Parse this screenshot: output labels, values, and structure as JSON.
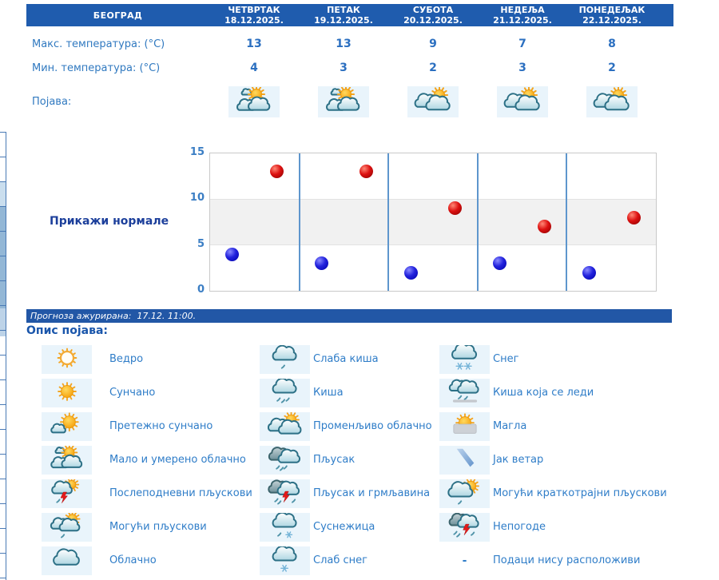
{
  "table": {
    "location": "БЕОГРАД",
    "days": [
      {
        "name": "ЧЕТВРТАК",
        "date": "18.12.2025."
      },
      {
        "name": "ПЕТАК",
        "date": "19.12.2025."
      },
      {
        "name": "СУБОТА",
        "date": "20.12.2025."
      },
      {
        "name": "НЕДЕЉА",
        "date": "21.12.2025."
      },
      {
        "name": "ПОНЕДЕЉАК",
        "date": "22.12.2025."
      }
    ],
    "max_label": "Макс. температура: (°C)",
    "min_label": "Мин. температура: (°C)",
    "phenomena_label": "Појава:",
    "max_values": [
      "13",
      "13",
      "9",
      "7",
      "8"
    ],
    "min_values": [
      "4",
      "3",
      "2",
      "3",
      "2"
    ],
    "phenomena_icons": [
      "partly-cloudy",
      "partly-cloudy",
      "variable-cloudy",
      "variable-cloudy",
      "variable-cloudy"
    ]
  },
  "normals_button": {
    "label": "Прикажи нормале"
  },
  "chart_data": {
    "type": "scatter",
    "categories": [
      "18.12.2025.",
      "19.12.2025.",
      "20.12.2025.",
      "21.12.2025.",
      "22.12.2025."
    ],
    "series": [
      {
        "name": "Макс. температура (°C)",
        "color": "#dd1111",
        "values": [
          13,
          13,
          9,
          7,
          8
        ]
      },
      {
        "name": "Мин. температура (°C)",
        "color": "#2222dd",
        "values": [
          4,
          3,
          2,
          3,
          2
        ]
      }
    ],
    "ylim": [
      0,
      15
    ],
    "yticks": [
      0,
      5,
      10,
      15
    ],
    "shaded_band": [
      5,
      10
    ],
    "grid": "vertical day separators",
    "legend_position": "none",
    "title": "",
    "xlabel": "",
    "ylabel": ""
  },
  "update_bar": {
    "text": "Прогноза ажурирана:  17.12. 11:00."
  },
  "legend": {
    "title": "Опис појава:",
    "columns": [
      [
        {
          "icon": "clear",
          "label": "Ведро"
        },
        {
          "icon": "sunny",
          "label": "Сунчано"
        },
        {
          "icon": "mostly-sunny",
          "label": "Претежно сунчано"
        },
        {
          "icon": "partly-cloudy",
          "label": "Мало и умерено облачно"
        },
        {
          "icon": "afternoon-showers",
          "label": "Послеподневни пљускови"
        },
        {
          "icon": "possible-showers",
          "label": "Могући пљускови"
        },
        {
          "icon": "cloudy",
          "label": "Облачно"
        }
      ],
      [
        {
          "icon": "light-rain",
          "label": "Слаба киша"
        },
        {
          "icon": "rain",
          "label": "Киша"
        },
        {
          "icon": "variable-cloudy",
          "label": "Променљиво облачно"
        },
        {
          "icon": "shower",
          "label": "Пљусак"
        },
        {
          "icon": "thunder-shower",
          "label": "Пљусак и грмљавина"
        },
        {
          "icon": "sleet",
          "label": "Суснежица"
        },
        {
          "icon": "light-snow",
          "label": "Слаб снег"
        }
      ],
      [
        {
          "icon": "snow",
          "label": "Снег"
        },
        {
          "icon": "freezing-rain",
          "label": "Киша која се леди"
        },
        {
          "icon": "fog",
          "label": "Магла"
        },
        {
          "icon": "strong-wind",
          "label": "Јак ветар"
        },
        {
          "icon": "short-showers",
          "label": "Могући краткотрајни пљускови"
        },
        {
          "icon": "storms",
          "label": "Непогоде"
        },
        {
          "icon": "no-data",
          "char": "-",
          "label": "Подаци нису расположиви"
        }
      ]
    ]
  },
  "colors": {
    "header_bar": "#1f5cae",
    "update_bar": "#2257a6",
    "label_text": "#3079c0",
    "value_text": "#2b6fc0",
    "legend_text": "#2f7dc8",
    "icon_cell_bg": "#e9f4fb",
    "chart_band": "#f1f1f1",
    "chart_separator": "#5e96cd",
    "dot_max": "#dd1111",
    "dot_min": "#2222dd"
  }
}
